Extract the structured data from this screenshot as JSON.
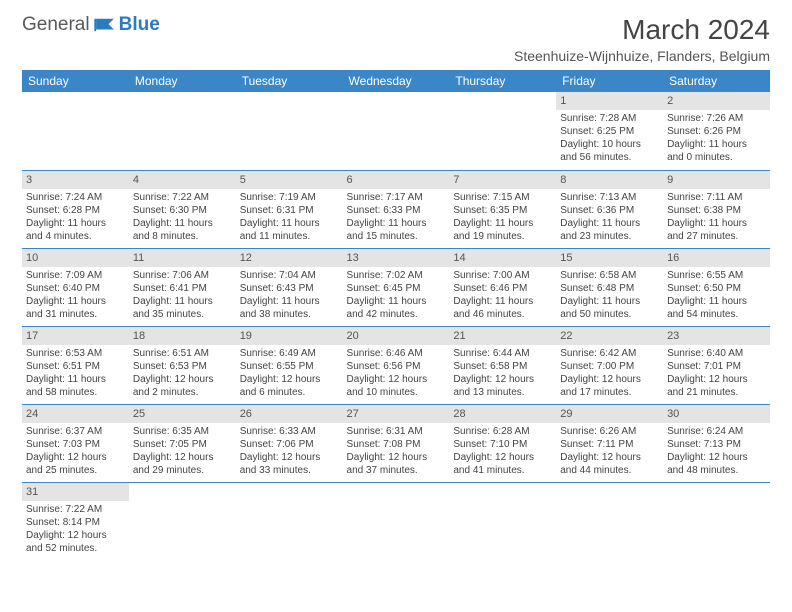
{
  "brand": {
    "part1": "General",
    "part2": "Blue"
  },
  "title": "March 2024",
  "location": "Steenhuize-Wijnhuize, Flanders, Belgium",
  "colors": {
    "header_bg": "#3b86c7",
    "header_text": "#ffffff",
    "daynum_bg": "#e4e4e4",
    "cell_border": "#3b86c7",
    "text": "#444444",
    "brand_gray": "#5a5a5a",
    "brand_blue": "#2b7bbf"
  },
  "weekdays": [
    "Sunday",
    "Monday",
    "Tuesday",
    "Wednesday",
    "Thursday",
    "Friday",
    "Saturday"
  ],
  "weeks": [
    [
      null,
      null,
      null,
      null,
      null,
      {
        "n": "1",
        "sr": "Sunrise: 7:28 AM",
        "ss": "Sunset: 6:25 PM",
        "dl": "Daylight: 10 hours and 56 minutes."
      },
      {
        "n": "2",
        "sr": "Sunrise: 7:26 AM",
        "ss": "Sunset: 6:26 PM",
        "dl": "Daylight: 11 hours and 0 minutes."
      }
    ],
    [
      {
        "n": "3",
        "sr": "Sunrise: 7:24 AM",
        "ss": "Sunset: 6:28 PM",
        "dl": "Daylight: 11 hours and 4 minutes."
      },
      {
        "n": "4",
        "sr": "Sunrise: 7:22 AM",
        "ss": "Sunset: 6:30 PM",
        "dl": "Daylight: 11 hours and 8 minutes."
      },
      {
        "n": "5",
        "sr": "Sunrise: 7:19 AM",
        "ss": "Sunset: 6:31 PM",
        "dl": "Daylight: 11 hours and 11 minutes."
      },
      {
        "n": "6",
        "sr": "Sunrise: 7:17 AM",
        "ss": "Sunset: 6:33 PM",
        "dl": "Daylight: 11 hours and 15 minutes."
      },
      {
        "n": "7",
        "sr": "Sunrise: 7:15 AM",
        "ss": "Sunset: 6:35 PM",
        "dl": "Daylight: 11 hours and 19 minutes."
      },
      {
        "n": "8",
        "sr": "Sunrise: 7:13 AM",
        "ss": "Sunset: 6:36 PM",
        "dl": "Daylight: 11 hours and 23 minutes."
      },
      {
        "n": "9",
        "sr": "Sunrise: 7:11 AM",
        "ss": "Sunset: 6:38 PM",
        "dl": "Daylight: 11 hours and 27 minutes."
      }
    ],
    [
      {
        "n": "10",
        "sr": "Sunrise: 7:09 AM",
        "ss": "Sunset: 6:40 PM",
        "dl": "Daylight: 11 hours and 31 minutes."
      },
      {
        "n": "11",
        "sr": "Sunrise: 7:06 AM",
        "ss": "Sunset: 6:41 PM",
        "dl": "Daylight: 11 hours and 35 minutes."
      },
      {
        "n": "12",
        "sr": "Sunrise: 7:04 AM",
        "ss": "Sunset: 6:43 PM",
        "dl": "Daylight: 11 hours and 38 minutes."
      },
      {
        "n": "13",
        "sr": "Sunrise: 7:02 AM",
        "ss": "Sunset: 6:45 PM",
        "dl": "Daylight: 11 hours and 42 minutes."
      },
      {
        "n": "14",
        "sr": "Sunrise: 7:00 AM",
        "ss": "Sunset: 6:46 PM",
        "dl": "Daylight: 11 hours and 46 minutes."
      },
      {
        "n": "15",
        "sr": "Sunrise: 6:58 AM",
        "ss": "Sunset: 6:48 PM",
        "dl": "Daylight: 11 hours and 50 minutes."
      },
      {
        "n": "16",
        "sr": "Sunrise: 6:55 AM",
        "ss": "Sunset: 6:50 PM",
        "dl": "Daylight: 11 hours and 54 minutes."
      }
    ],
    [
      {
        "n": "17",
        "sr": "Sunrise: 6:53 AM",
        "ss": "Sunset: 6:51 PM",
        "dl": "Daylight: 11 hours and 58 minutes."
      },
      {
        "n": "18",
        "sr": "Sunrise: 6:51 AM",
        "ss": "Sunset: 6:53 PM",
        "dl": "Daylight: 12 hours and 2 minutes."
      },
      {
        "n": "19",
        "sr": "Sunrise: 6:49 AM",
        "ss": "Sunset: 6:55 PM",
        "dl": "Daylight: 12 hours and 6 minutes."
      },
      {
        "n": "20",
        "sr": "Sunrise: 6:46 AM",
        "ss": "Sunset: 6:56 PM",
        "dl": "Daylight: 12 hours and 10 minutes."
      },
      {
        "n": "21",
        "sr": "Sunrise: 6:44 AM",
        "ss": "Sunset: 6:58 PM",
        "dl": "Daylight: 12 hours and 13 minutes."
      },
      {
        "n": "22",
        "sr": "Sunrise: 6:42 AM",
        "ss": "Sunset: 7:00 PM",
        "dl": "Daylight: 12 hours and 17 minutes."
      },
      {
        "n": "23",
        "sr": "Sunrise: 6:40 AM",
        "ss": "Sunset: 7:01 PM",
        "dl": "Daylight: 12 hours and 21 minutes."
      }
    ],
    [
      {
        "n": "24",
        "sr": "Sunrise: 6:37 AM",
        "ss": "Sunset: 7:03 PM",
        "dl": "Daylight: 12 hours and 25 minutes."
      },
      {
        "n": "25",
        "sr": "Sunrise: 6:35 AM",
        "ss": "Sunset: 7:05 PM",
        "dl": "Daylight: 12 hours and 29 minutes."
      },
      {
        "n": "26",
        "sr": "Sunrise: 6:33 AM",
        "ss": "Sunset: 7:06 PM",
        "dl": "Daylight: 12 hours and 33 minutes."
      },
      {
        "n": "27",
        "sr": "Sunrise: 6:31 AM",
        "ss": "Sunset: 7:08 PM",
        "dl": "Daylight: 12 hours and 37 minutes."
      },
      {
        "n": "28",
        "sr": "Sunrise: 6:28 AM",
        "ss": "Sunset: 7:10 PM",
        "dl": "Daylight: 12 hours and 41 minutes."
      },
      {
        "n": "29",
        "sr": "Sunrise: 6:26 AM",
        "ss": "Sunset: 7:11 PM",
        "dl": "Daylight: 12 hours and 44 minutes."
      },
      {
        "n": "30",
        "sr": "Sunrise: 6:24 AM",
        "ss": "Sunset: 7:13 PM",
        "dl": "Daylight: 12 hours and 48 minutes."
      }
    ],
    [
      {
        "n": "31",
        "sr": "Sunrise: 7:22 AM",
        "ss": "Sunset: 8:14 PM",
        "dl": "Daylight: 12 hours and 52 minutes."
      },
      null,
      null,
      null,
      null,
      null,
      null
    ]
  ]
}
